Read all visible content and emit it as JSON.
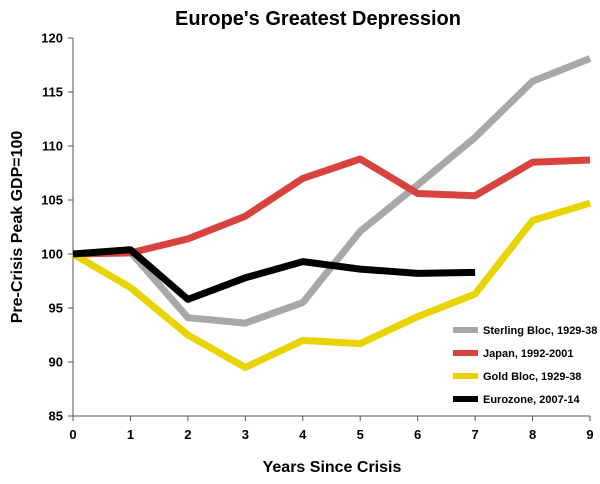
{
  "chart_data": {
    "type": "line",
    "title": "Europe's Greatest Depression",
    "xlabel": "Years Since Crisis",
    "ylabel": "Pre-Crisis Peak GDP=100",
    "xlim": [
      0,
      9
    ],
    "ylim": [
      85,
      120
    ],
    "xticks": [
      "0",
      "1",
      "2",
      "3",
      "4",
      "5",
      "6",
      "7",
      "8",
      "9"
    ],
    "yticks": [
      "85",
      "90",
      "95",
      "100",
      "105",
      "110",
      "115",
      "120"
    ],
    "grid": false,
    "legend_position": "bottom-right",
    "series": [
      {
        "name": "Sterling Bloc, 1929-38",
        "color": "#a8a8a8",
        "x": [
          0,
          1,
          2,
          3,
          4,
          5,
          6,
          7,
          8,
          9
        ],
        "values": [
          100,
          100.2,
          94.1,
          93.6,
          95.5,
          102.1,
          106.4,
          110.8,
          116.0,
          118.1
        ]
      },
      {
        "name": "Japan, 1992-2001",
        "color": "#d9433f",
        "x": [
          0,
          1,
          2,
          3,
          4,
          5,
          6,
          7,
          8,
          9
        ],
        "values": [
          100,
          100.1,
          101.4,
          103.5,
          107.0,
          108.8,
          105.6,
          105.4,
          108.5,
          108.7
        ]
      },
      {
        "name": "Gold Bloc, 1929-38",
        "color": "#e8d400",
        "x": [
          0,
          1,
          2,
          3,
          4,
          5,
          6,
          7,
          8,
          9
        ],
        "values": [
          100,
          96.9,
          92.5,
          89.5,
          92.0,
          91.7,
          94.2,
          96.3,
          103.1,
          104.7
        ]
      },
      {
        "name": "Eurozone, 2007-14",
        "color": "#000000",
        "x": [
          0,
          1,
          2,
          3,
          4,
          5,
          6,
          7
        ],
        "values": [
          100,
          100.4,
          95.8,
          97.8,
          99.3,
          98.6,
          98.2,
          98.3
        ]
      }
    ]
  }
}
